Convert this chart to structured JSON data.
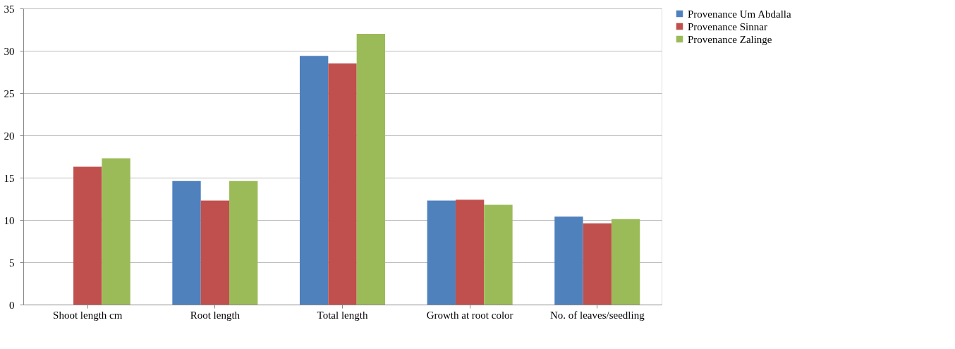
{
  "chart_data": {
    "type": "bar",
    "categories": [
      "Shoot length  cm",
      "Root length",
      "Total length",
      "Growth at root color",
      "No. of leaves/seedling"
    ],
    "series": [
      {
        "name": "Provenance Um Abdalla",
        "color": "#4f81bd",
        "values": [
          null,
          14.6,
          29.4,
          12.3,
          10.4
        ]
      },
      {
        "name": "Provenance Sinnar",
        "color": "#c0504d",
        "values": [
          16.3,
          12.3,
          28.5,
          12.4,
          9.6
        ]
      },
      {
        "name": "Provenance Zalinge",
        "color": "#9bbb59",
        "values": [
          17.3,
          14.6,
          32.0,
          11.8,
          10.1
        ]
      }
    ],
    "ylim": [
      0,
      35
    ],
    "yticks": [
      0,
      5,
      10,
      15,
      20,
      25,
      30,
      35
    ],
    "grid": "y",
    "legend": "right"
  }
}
